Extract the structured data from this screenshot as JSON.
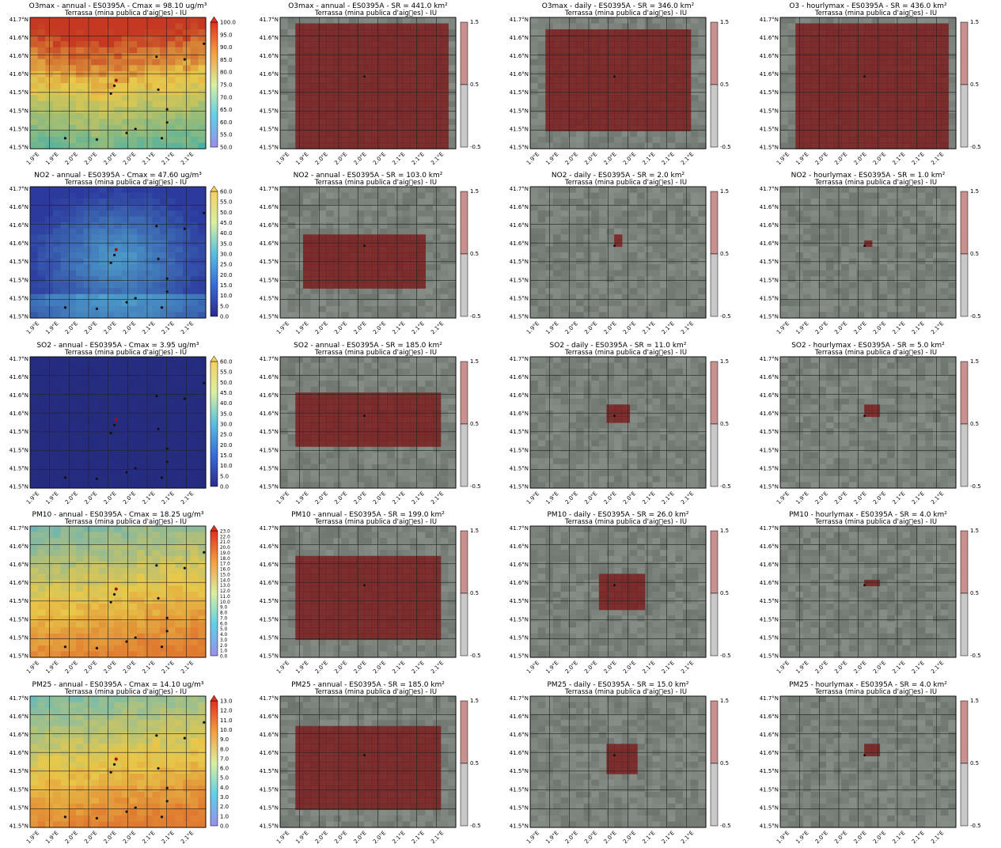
{
  "chart_data": [
    {
      "type": "heatmap",
      "pollutant": "O3max",
      "title": "O3max - annual - ES0395A - Cmax = 98.10 ug/m³",
      "subtitle": "Terrassa (mina publica d'aig\u0000es) - IU",
      "colorbar": {
        "kind": "continuous",
        "min": 50.0,
        "max": 100.0,
        "ticks": [
          "50.0",
          "55.0",
          "60.0",
          "65.0",
          "70.0",
          "75.0",
          "80.0",
          "85.0",
          "90.0",
          "95.0",
          "100.0"
        ],
        "colors": [
          "#9a8ee8",
          "#5fd0e8",
          "#d8f0a0",
          "#f5a040",
          "#e03020"
        ]
      },
      "field": {
        "base": "#c53822",
        "gradient": "south-lower",
        "low_color": "#49b0a6",
        "mid_color": "#e8c84a"
      },
      "xticks": [
        "1.9°E",
        "1.9°E",
        "2.0°E",
        "2.0°E",
        "2.0°E",
        "2.0°E",
        "2.1°E",
        "2.1°E",
        "2.1°E"
      ],
      "yticks": [
        "41.7°N",
        "41.6°N",
        "41.6°N",
        "41.6°N",
        "41.5°N",
        "41.5°N",
        "41.5°N",
        "41.5°N"
      ],
      "grid": true
    },
    {
      "type": "heatmap",
      "pollutant": "O3max",
      "title": "O3max - annual - ES0395A - SR = 441.0 km²",
      "subtitle": "Terrassa (mina publica d'aig\u0000es) - IU",
      "colorbar": {
        "kind": "binary",
        "ticks": [
          "1.5",
          "0.5",
          "-0.5"
        ]
      },
      "xticks": [
        "1.9°E",
        "1.9°E",
        "2.0°E",
        "2.0°E",
        "2.0°E",
        "2.0°E",
        "2.1°E",
        "2.1°E",
        "2.1°E"
      ],
      "yticks": [
        "41.7°N",
        "41.6°N",
        "41.6°N",
        "41.6°N",
        "41.5°N",
        "41.5°N",
        "41.5°N",
        "41.5°N"
      ],
      "grid": true,
      "region": [
        [
          2,
          1
        ],
        [
          21,
          21
        ]
      ]
    },
    {
      "type": "heatmap",
      "pollutant": "O3max",
      "title": "O3max - daily - ES0395A - SR = 346.0 km²",
      "subtitle": "Terrassa (mina publica d'aig\u0000es) - IU",
      "colorbar": {
        "kind": "binary",
        "ticks": [
          "1.5",
          "0.5",
          "-0.5"
        ]
      },
      "xticks": [
        "1.9°E",
        "1.9°E",
        "2.0°E",
        "2.0°E",
        "2.0°E",
        "2.0°E",
        "2.1°E",
        "2.1°E",
        "2.1°E"
      ],
      "yticks": [
        "41.7°N",
        "41.6°N",
        "41.6°N",
        "41.6°N",
        "41.5°N",
        "41.5°N",
        "41.5°N",
        "41.5°N"
      ],
      "grid": true,
      "region": [
        [
          2,
          2
        ],
        [
          20,
          18
        ]
      ]
    },
    {
      "type": "heatmap",
      "pollutant": "O3",
      "title": "O3 - hourlymax - ES0395A - SR = 436.0 km²",
      "subtitle": "Terrassa (mina publica d'aig\u0000es) - IU",
      "colorbar": {
        "kind": "binary",
        "ticks": [
          "1.5",
          "0.5",
          "-0.5"
        ]
      },
      "xticks": [
        "1.9°E",
        "1.9°E",
        "2.0°E",
        "2.0°E",
        "2.0°E",
        "2.0°E",
        "2.1°E",
        "2.1°E",
        "2.1°E"
      ],
      "yticks": [
        "41.7°N",
        "41.6°N",
        "41.6°N",
        "41.6°N",
        "41.5°N",
        "41.5°N",
        "41.5°N",
        "41.5°N"
      ],
      "grid": true,
      "region": [
        [
          2,
          1
        ],
        [
          21,
          21
        ]
      ]
    },
    {
      "type": "heatmap",
      "pollutant": "NO2",
      "title": "NO2 - annual - ES0395A - Cmax = 47.60 ug/m³",
      "subtitle": "Terrassa (mina publica d'aig\u0000es) - IU",
      "colorbar": {
        "kind": "continuous",
        "min": 0.0,
        "max": 60.0,
        "ticks": [
          "0.0",
          "5.0",
          "10.0",
          "15.0",
          "20.0",
          "25.0",
          "30.0",
          "35.0",
          "40.0",
          "45.0",
          "50.0",
          "55.0",
          "60.0"
        ],
        "colors": [
          "#2a2b8f",
          "#3a6ad8",
          "#56c0e0",
          "#d8f0a0",
          "#f5d060"
        ]
      },
      "field": {
        "base": "#2c3a9e",
        "gradient": "center-high",
        "low_color": "#2c3a9e",
        "mid_color": "#5ac0d8"
      },
      "xticks": [
        "1.9°E",
        "1.9°E",
        "2.0°E",
        "2.0°E",
        "2.0°E",
        "2.0°E",
        "2.1°E",
        "2.1°E",
        "2.1°E"
      ],
      "yticks": [
        "41.7°N",
        "41.6°N",
        "41.6°N",
        "41.6°N",
        "41.5°N",
        "41.5°N",
        "41.5°N",
        "41.5°N"
      ],
      "grid": true
    },
    {
      "type": "heatmap",
      "pollutant": "NO2",
      "title": "NO2 - annual - ES0395A - SR = 103.0 km²",
      "subtitle": "Terrassa (mina publica d'aig\u0000es) - IU",
      "colorbar": {
        "kind": "binary",
        "ticks": [
          "1.5",
          "0.5",
          "-0.5"
        ]
      },
      "xticks": [
        "1.9°E",
        "1.9°E",
        "2.0°E",
        "2.0°E",
        "2.0°E",
        "2.0°E",
        "2.1°E",
        "2.1°E",
        "2.1°E"
      ],
      "yticks": [
        "41.7°N",
        "41.6°N",
        "41.6°N",
        "41.6°N",
        "41.5°N",
        "41.5°N",
        "41.5°N",
        "41.5°N"
      ],
      "grid": true,
      "region": [
        [
          3,
          8
        ],
        [
          18,
          16
        ]
      ]
    },
    {
      "type": "heatmap",
      "pollutant": "NO2",
      "title": "NO2 - daily - ES0395A - SR = 2.0 km²",
      "subtitle": "Terrassa (mina publica d'aig\u0000es) - IU",
      "colorbar": {
        "kind": "binary",
        "ticks": [
          "1.5",
          "0.5",
          "-0.5"
        ]
      },
      "xticks": [
        "1.9°E",
        "1.9°E",
        "2.0°E",
        "2.0°E",
        "2.0°E",
        "2.0°E",
        "2.1°E",
        "2.1°E",
        "2.1°E"
      ],
      "yticks": [
        "41.7°N",
        "41.6°N",
        "41.6°N",
        "41.6°N",
        "41.5°N",
        "41.5°N",
        "41.5°N",
        "41.5°N"
      ],
      "grid": true,
      "region": [
        [
          11,
          8
        ],
        [
          11,
          9
        ]
      ]
    },
    {
      "type": "heatmap",
      "pollutant": "NO2",
      "title": "NO2 - hourlymax - ES0395A - SR = 1.0 km²",
      "subtitle": "Terrassa (mina publica d'aig\u0000es) - IU",
      "colorbar": {
        "kind": "binary",
        "ticks": [
          "1.5",
          "0.5",
          "-0.5"
        ]
      },
      "xticks": [
        "1.9°E",
        "1.9°E",
        "2.0°E",
        "2.0°E",
        "2.0°E",
        "2.0°E",
        "2.1°E",
        "2.1°E",
        "2.1°E"
      ],
      "yticks": [
        "41.7°N",
        "41.6°N",
        "41.6°N",
        "41.6°N",
        "41.5°N",
        "41.5°N",
        "41.5°N",
        "41.5°N"
      ],
      "grid": true,
      "region": [
        [
          11,
          9
        ],
        [
          11,
          9
        ]
      ]
    },
    {
      "type": "heatmap",
      "pollutant": "SO2",
      "title": "SO2 - annual - ES0395A - Cmax = 3.95 ug/m³",
      "subtitle": "Terrassa (mina publica d'aig\u0000es) - IU",
      "colorbar": {
        "kind": "continuous",
        "min": 0.0,
        "max": 60.0,
        "ticks": [
          "0.0",
          "5.0",
          "10.0",
          "15.0",
          "20.0",
          "25.0",
          "30.0",
          "35.0",
          "40.0",
          "45.0",
          "50.0",
          "55.0",
          "60.0"
        ],
        "colors": [
          "#2a2b8f",
          "#3a6ad8",
          "#56c0e0",
          "#d8f0a0",
          "#f5d060"
        ]
      },
      "field": {
        "base": "#252c7e",
        "gradient": "flat",
        "low_color": "#252c7e",
        "mid_color": "#2a3590"
      },
      "xticks": [
        "1.9°E",
        "1.9°E",
        "2.0°E",
        "2.0°E",
        "2.0°E",
        "2.0°E",
        "2.1°E",
        "2.1°E",
        "2.1°E"
      ],
      "yticks": [
        "41.7°N",
        "41.6°N",
        "41.6°N",
        "41.6°N",
        "41.5°N",
        "41.5°N",
        "41.5°N",
        "41.5°N"
      ],
      "grid": true
    },
    {
      "type": "heatmap",
      "pollutant": "SO2",
      "title": "SO2 - annual - ES0395A - SR = 185.0 km²",
      "subtitle": "Terrassa (mina publica d'aig\u0000es) - IU",
      "colorbar": {
        "kind": "binary",
        "ticks": [
          "1.5",
          "0.5",
          "-0.5"
        ]
      },
      "xticks": [
        "1.9°E",
        "1.9°E",
        "2.0°E",
        "2.0°E",
        "2.0°E",
        "2.0°E",
        "2.1°E",
        "2.1°E",
        "2.1°E"
      ],
      "yticks": [
        "41.7°N",
        "41.6°N",
        "41.6°N",
        "41.6°N",
        "41.5°N",
        "41.5°N",
        "41.5°N",
        "41.5°N"
      ],
      "grid": true,
      "region": [
        [
          2,
          6
        ],
        [
          20,
          14
        ]
      ]
    },
    {
      "type": "heatmap",
      "pollutant": "SO2",
      "title": "SO2 - daily - ES0395A - SR = 11.0 km²",
      "subtitle": "Terrassa (mina publica d'aig\u0000es) - IU",
      "colorbar": {
        "kind": "binary",
        "ticks": [
          "1.5",
          "0.5",
          "-0.5"
        ]
      },
      "xticks": [
        "1.9°E",
        "1.9°E",
        "2.0°E",
        "2.0°E",
        "2.0°E",
        "2.0°E",
        "2.1°E",
        "2.1°E",
        "2.1°E"
      ],
      "yticks": [
        "41.7°N",
        "41.6°N",
        "41.6°N",
        "41.6°N",
        "41.5°N",
        "41.5°N",
        "41.5°N",
        "41.5°N"
      ],
      "grid": true,
      "region": [
        [
          10,
          8
        ],
        [
          12,
          10
        ]
      ]
    },
    {
      "type": "heatmap",
      "pollutant": "SO2",
      "title": "SO2 - hourlymax - ES0395A - SR = 5.0 km²",
      "subtitle": "Terrassa (mina publica d'aig\u0000es) - IU",
      "colorbar": {
        "kind": "binary",
        "ticks": [
          "1.5",
          "0.5",
          "-0.5"
        ]
      },
      "xticks": [
        "1.9°E",
        "1.9°E",
        "2.0°E",
        "2.0°E",
        "2.0°E",
        "2.0°E",
        "2.1°E",
        "2.1°E",
        "2.1°E"
      ],
      "yticks": [
        "41.7°N",
        "41.6°N",
        "41.6°N",
        "41.6°N",
        "41.5°N",
        "41.5°N",
        "41.5°N",
        "41.5°N"
      ],
      "grid": true,
      "region": [
        [
          11,
          8
        ],
        [
          12,
          9
        ]
      ]
    },
    {
      "type": "heatmap",
      "pollutant": "PM10",
      "title": "PM10 - annual - ES0395A - Cmax = 18.25 ug/m³",
      "subtitle": "Terrassa (mina publica d'aig\u0000es) - IU",
      "colorbar": {
        "kind": "continuous",
        "min": 0.0,
        "max": 23.0,
        "ticks": [
          "0.0",
          "1.0",
          "2.0",
          "3.0",
          "4.0",
          "5.0",
          "6.0",
          "7.0",
          "8.0",
          "9.0",
          "10.0",
          "11.0",
          "12.0",
          "13.0",
          "14.0",
          "15.0",
          "16.0",
          "17.0",
          "18.0",
          "19.0",
          "20.0",
          "21.0",
          "22.0",
          "23.0"
        ],
        "colors": [
          "#9a8ee8",
          "#5fd0e8",
          "#d8f0a0",
          "#f5a040",
          "#e03020"
        ]
      },
      "field": {
        "base": "#7fc0b0",
        "gradient": "south-higher",
        "low_color": "#55b0c8",
        "mid_color": "#e8c84a"
      },
      "xticks": [
        "1.9°E",
        "1.9°E",
        "2.0°E",
        "2.0°E",
        "2.0°E",
        "2.0°E",
        "2.1°E",
        "2.1°E",
        "2.1°E"
      ],
      "yticks": [
        "41.7°N",
        "41.6°N",
        "41.6°N",
        "41.6°N",
        "41.5°N",
        "41.5°N",
        "41.5°N",
        "41.5°N"
      ],
      "grid": true
    },
    {
      "type": "heatmap",
      "pollutant": "PM10",
      "title": "PM10 - annual - ES0395A - SR = 199.0 km²",
      "subtitle": "Terrassa (mina publica d'aig\u0000es) - IU",
      "colorbar": {
        "kind": "binary",
        "ticks": [
          "1.5",
          "0.5",
          "-0.5"
        ]
      },
      "xticks": [
        "1.9°E",
        "1.9°E",
        "2.0°E",
        "2.0°E",
        "2.0°E",
        "2.0°E",
        "2.1°E",
        "2.1°E",
        "2.1°E"
      ],
      "yticks": [
        "41.7°N",
        "41.6°N",
        "41.6°N",
        "41.6°N",
        "41.5°N",
        "41.5°N",
        "41.5°N",
        "41.5°N"
      ],
      "grid": true,
      "region": [
        [
          2,
          5
        ],
        [
          20,
          18
        ]
      ]
    },
    {
      "type": "heatmap",
      "pollutant": "PM10",
      "title": "PM10 - daily - ES0395A - SR = 26.0 km²",
      "subtitle": "Terrassa (mina publica d'aig\u0000es) - IU",
      "colorbar": {
        "kind": "binary",
        "ticks": [
          "1.5",
          "0.5",
          "-0.5"
        ]
      },
      "xticks": [
        "1.9°E",
        "1.9°E",
        "2.0°E",
        "2.0°E",
        "2.0°E",
        "2.0°E",
        "2.1°E",
        "2.1°E",
        "2.1°E"
      ],
      "yticks": [
        "41.7°N",
        "41.6°N",
        "41.6°N",
        "41.6°N",
        "41.5°N",
        "41.5°N",
        "41.5°N",
        "41.5°N"
      ],
      "grid": true,
      "region": [
        [
          9,
          8
        ],
        [
          14,
          13
        ]
      ]
    },
    {
      "type": "heatmap",
      "pollutant": "PM10",
      "title": "PM10 - hourlymax - ES0395A - SR = 4.0 km²",
      "subtitle": "Terrassa (mina publica d'aig\u0000es) - IU",
      "colorbar": {
        "kind": "binary",
        "ticks": [
          "1.5",
          "0.5",
          "-0.5"
        ]
      },
      "xticks": [
        "1.9°E",
        "1.9°E",
        "2.0°E",
        "2.0°E",
        "2.0°E",
        "2.0°E",
        "2.1°E",
        "2.1°E",
        "2.1°E"
      ],
      "yticks": [
        "41.7°N",
        "41.6°N",
        "41.6°N",
        "41.6°N",
        "41.5°N",
        "41.5°N",
        "41.5°N",
        "41.5°N"
      ],
      "grid": true,
      "region": [
        [
          11,
          9
        ],
        [
          12,
          9
        ]
      ]
    },
    {
      "type": "heatmap",
      "pollutant": "PM25",
      "title": "PM25 - annual - ES0395A - Cmax = 14.10 ug/m³",
      "subtitle": "Terrassa (mina publica d'aig\u0000es) - IU",
      "colorbar": {
        "kind": "continuous",
        "min": 0.0,
        "max": 13.0,
        "ticks": [
          "0.0",
          "1.0",
          "2.0",
          "3.0",
          "4.0",
          "5.0",
          "6.0",
          "7.0",
          "8.0",
          "9.0",
          "10.0",
          "11.0",
          "12.0",
          "13.0"
        ],
        "colors": [
          "#9a8ee8",
          "#5fd0e8",
          "#d8f0a0",
          "#f5a040",
          "#e03020"
        ]
      },
      "field": {
        "base": "#7fc0b0",
        "gradient": "south-higher",
        "low_color": "#5ab8c8",
        "mid_color": "#e8c84a"
      },
      "xticks": [
        "1.9°E",
        "1.9°E",
        "2.0°E",
        "2.0°E",
        "2.0°E",
        "2.0°E",
        "2.1°E",
        "2.1°E",
        "2.1°E"
      ],
      "yticks": [
        "41.7°N",
        "41.6°N",
        "41.6°N",
        "41.6°N",
        "41.5°N",
        "41.5°N",
        "41.5°N",
        "41.5°N"
      ],
      "grid": true
    },
    {
      "type": "heatmap",
      "pollutant": "PM25",
      "title": "PM25 - annual - ES0395A - SR = 185.0 km²",
      "subtitle": "Terrassa (mina publica d'aig\u0000es) - IU",
      "colorbar": {
        "kind": "binary",
        "ticks": [
          "1.5",
          "0.5",
          "-0.5"
        ]
      },
      "xticks": [
        "1.9°E",
        "1.9°E",
        "2.0°E",
        "2.0°E",
        "2.0°E",
        "2.0°E",
        "2.1°E",
        "2.1°E",
        "2.1°E"
      ],
      "yticks": [
        "41.7°N",
        "41.6°N",
        "41.6°N",
        "41.6°N",
        "41.5°N",
        "41.5°N",
        "41.5°N",
        "41.5°N"
      ],
      "grid": true,
      "region": [
        [
          2,
          5
        ],
        [
          20,
          18
        ]
      ]
    },
    {
      "type": "heatmap",
      "pollutant": "PM25",
      "title": "PM25 - daily - ES0395A - SR = 15.0 km²",
      "subtitle": "Terrassa (mina publica d'aig\u0000es) - IU",
      "colorbar": {
        "kind": "binary",
        "ticks": [
          "1.5",
          "0.5",
          "-0.5"
        ]
      },
      "xticks": [
        "1.9°E",
        "1.9°E",
        "2.0°E",
        "2.0°E",
        "2.0°E",
        "2.0°E",
        "2.1°E",
        "2.1°E",
        "2.1°E"
      ],
      "yticks": [
        "41.7°N",
        "41.6°N",
        "41.6°N",
        "41.6°N",
        "41.5°N",
        "41.5°N",
        "41.5°N",
        "41.5°N"
      ],
      "grid": true,
      "region": [
        [
          10,
          8
        ],
        [
          13,
          12
        ]
      ]
    },
    {
      "type": "heatmap",
      "pollutant": "PM25",
      "title": "PM25 - hourlymax - ES0395A - SR = 4.0 km²",
      "subtitle": "Terrassa (mina publica d'aig\u0000es) - IU",
      "colorbar": {
        "kind": "binary",
        "ticks": [
          "1.5",
          "0.5",
          "-0.5"
        ]
      },
      "xticks": [
        "1.9°E",
        "1.9°E",
        "2.0°E",
        "2.0°E",
        "2.0°E",
        "2.0°E",
        "2.1°E",
        "2.1°E",
        "2.1°E"
      ],
      "yticks": [
        "41.7°N",
        "41.6°N",
        "41.6°N",
        "41.6°N",
        "41.5°N",
        "41.5°N",
        "41.5°N",
        "41.5°N"
      ],
      "grid": true,
      "region": [
        [
          11,
          8
        ],
        [
          12,
          9
        ]
      ]
    }
  ]
}
